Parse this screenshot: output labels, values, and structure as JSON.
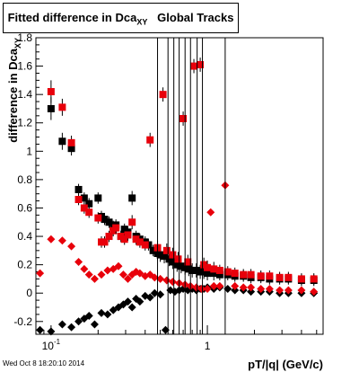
{
  "canvas_title": {
    "text": "Fitted difference in Dca",
    "subscript": "XY",
    "suffix": "Global Tracks"
  },
  "timestamp": "Wed Oct  8 18:20:10 2014",
  "colors": {
    "black_series": "#000000",
    "red_series": "#e8000b",
    "background": "#ffffff",
    "axis": "#000000"
  },
  "chart_data": {
    "type": "scatter",
    "title": "Fitted difference in Dca XY Global Tracks",
    "xlabel": "pT/|q| (GeV/c)",
    "ylabel": "difference in Dca",
    "ylabel_subscript": "XY",
    "x_scale": "log",
    "xlim": [
      0.08,
      5.5
    ],
    "ylim": [
      -0.29,
      1.8
    ],
    "x_ticks": [
      {
        "value": 0.1,
        "label": "10^{-1}"
      },
      {
        "value": 1,
        "label": "1"
      }
    ],
    "y_ticks": [
      -0.2,
      0,
      0.2,
      0.4,
      0.6,
      0.8,
      1,
      1.2,
      1.4,
      1.6,
      1.8
    ],
    "grid": false,
    "legend": "none",
    "series": [
      {
        "marker": "square",
        "color": "#000000",
        "points": [
          [
            0.1,
            1.3,
            0.08
          ],
          [
            0.118,
            1.07,
            0.06
          ],
          [
            0.135,
            1.02,
            0.05
          ],
          [
            0.15,
            0.73,
            0.04
          ],
          [
            0.163,
            0.67,
            0.04
          ],
          [
            0.175,
            0.63,
            0.04
          ],
          [
            0.2,
            0.67,
            0.04
          ],
          [
            0.21,
            0.54,
            0.04
          ],
          [
            0.22,
            0.52,
            0.04
          ],
          [
            0.235,
            0.5,
            0.04
          ],
          [
            0.25,
            0.47,
            0.04
          ],
          [
            0.26,
            0.48,
            0.04
          ],
          [
            0.28,
            0.4,
            0.04
          ],
          [
            0.295,
            0.45,
            0.04
          ],
          [
            0.31,
            0.43,
            0.04
          ],
          [
            0.33,
            0.67,
            0.05
          ],
          [
            0.35,
            0.4,
            0.04
          ],
          [
            0.37,
            0.38,
            0.04
          ],
          [
            0.4,
            0.36,
            0.04
          ],
          [
            0.42,
            0.34,
            0.04
          ],
          [
            0.45,
            0.3,
            0.04
          ],
          [
            0.48,
            0.28,
            0.05
          ],
          [
            0.5,
            0.27,
            0.05
          ],
          [
            0.53,
            0.26,
            0.05
          ],
          [
            0.57,
            0.24,
            0.05
          ],
          [
            0.6,
            0.22,
            0.05
          ],
          [
            0.64,
            0.2,
            0.05
          ],
          [
            0.68,
            0.19,
            0.05
          ],
          [
            0.72,
            0.18,
            0.05
          ],
          [
            0.76,
            0.17,
            0.05
          ],
          [
            0.8,
            0.16,
            0.05
          ],
          [
            0.85,
            0.16,
            0.05
          ],
          [
            0.9,
            0.15,
            0.05
          ],
          [
            0.95,
            0.15,
            0.05
          ],
          [
            1.0,
            0.14,
            0.05
          ],
          [
            1.1,
            0.14,
            0.05
          ],
          [
            1.2,
            0.13,
            0.04
          ],
          [
            1.35,
            0.13,
            0.04
          ],
          [
            1.5,
            0.12,
            0.04
          ],
          [
            1.7,
            0.12,
            0.04
          ],
          [
            1.9,
            0.11,
            0.04
          ],
          [
            2.2,
            0.11,
            0.04
          ],
          [
            2.5,
            0.1,
            0.04
          ],
          [
            2.9,
            0.1,
            0.04
          ],
          [
            3.3,
            0.1,
            0.04
          ],
          [
            4.0,
            0.09,
            0.04
          ],
          [
            4.8,
            0.09,
            0.04
          ]
        ]
      },
      {
        "marker": "square",
        "color": "#e8000b",
        "points": [
          [
            0.1,
            1.42,
            0.08
          ],
          [
            0.118,
            1.31,
            0.06
          ],
          [
            0.135,
            1.06,
            0.05
          ],
          [
            0.15,
            0.66,
            0.04
          ],
          [
            0.163,
            0.6,
            0.04
          ],
          [
            0.175,
            0.57,
            0.04
          ],
          [
            0.2,
            0.53,
            0.04
          ],
          [
            0.21,
            0.36,
            0.04
          ],
          [
            0.22,
            0.36,
            0.04
          ],
          [
            0.235,
            0.4,
            0.04
          ],
          [
            0.25,
            0.44,
            0.04
          ],
          [
            0.26,
            0.46,
            0.04
          ],
          [
            0.28,
            0.4,
            0.04
          ],
          [
            0.295,
            0.38,
            0.04
          ],
          [
            0.31,
            0.41,
            0.04
          ],
          [
            0.33,
            0.5,
            0.05
          ],
          [
            0.35,
            0.38,
            0.04
          ],
          [
            0.37,
            0.36,
            0.04
          ],
          [
            0.4,
            0.34,
            0.04
          ],
          [
            0.43,
            1.08,
            0.05
          ],
          [
            0.48,
            0.32,
            0.05
          ],
          [
            0.52,
            1.4,
            0.05
          ],
          [
            0.55,
            0.3,
            0.05
          ],
          [
            0.6,
            0.27,
            0.05
          ],
          [
            0.65,
            0.24,
            0.05
          ],
          [
            0.7,
            1.23,
            0.05
          ],
          [
            0.75,
            0.22,
            0.05
          ],
          [
            0.82,
            1.6,
            0.05
          ],
          [
            0.9,
            1.61,
            0.05
          ],
          [
            0.95,
            0.2,
            0.05
          ],
          [
            1.0,
            0.18,
            0.05
          ],
          [
            1.1,
            0.17,
            0.05
          ],
          [
            1.2,
            0.16,
            0.04
          ],
          [
            1.35,
            0.15,
            0.04
          ],
          [
            1.5,
            0.14,
            0.04
          ],
          [
            1.7,
            0.13,
            0.04
          ],
          [
            1.9,
            0.13,
            0.04
          ],
          [
            2.2,
            0.12,
            0.04
          ],
          [
            2.5,
            0.12,
            0.04
          ],
          [
            2.9,
            0.11,
            0.04
          ],
          [
            3.3,
            0.11,
            0.04
          ],
          [
            4.0,
            0.1,
            0.04
          ],
          [
            4.8,
            0.1,
            0.04
          ]
        ]
      },
      {
        "marker": "diamond",
        "color": "#000000",
        "points": [
          [
            0.085,
            -0.26
          ],
          [
            0.1,
            -0.27
          ],
          [
            0.118,
            -0.22
          ],
          [
            0.135,
            -0.24
          ],
          [
            0.15,
            -0.2
          ],
          [
            0.163,
            -0.18
          ],
          [
            0.175,
            -0.16
          ],
          [
            0.19,
            -0.22
          ],
          [
            0.21,
            -0.14
          ],
          [
            0.23,
            -0.15
          ],
          [
            0.25,
            -0.12
          ],
          [
            0.27,
            -0.1
          ],
          [
            0.29,
            -0.08
          ],
          [
            0.31,
            -0.06
          ],
          [
            0.33,
            -0.1
          ],
          [
            0.35,
            -0.04
          ],
          [
            0.37,
            -0.06
          ],
          [
            0.4,
            -0.02
          ],
          [
            0.43,
            -0.03
          ],
          [
            0.46,
            0.0
          ],
          [
            0.5,
            -0.01
          ],
          [
            0.54,
            -0.26
          ],
          [
            0.58,
            0.02
          ],
          [
            0.62,
            0.01
          ],
          [
            0.66,
            0.02
          ],
          [
            0.7,
            0.03
          ],
          [
            0.75,
            0.02
          ],
          [
            0.8,
            0.03
          ],
          [
            0.85,
            0.02
          ],
          [
            0.9,
            0.03
          ],
          [
            0.95,
            0.03
          ],
          [
            1.0,
            0.04
          ],
          [
            1.1,
            0.03
          ],
          [
            1.2,
            0.04
          ],
          [
            1.35,
            0.03
          ],
          [
            1.5,
            0.02
          ],
          [
            1.7,
            0.02
          ],
          [
            1.9,
            0.01
          ],
          [
            2.2,
            0.01
          ],
          [
            2.5,
            0.01
          ],
          [
            2.9,
            0.0
          ],
          [
            3.3,
            0.0
          ],
          [
            4.0,
            0.0
          ],
          [
            4.8,
            0.0
          ]
        ]
      },
      {
        "marker": "diamond",
        "color": "#e8000b",
        "points": [
          [
            0.085,
            0.14
          ],
          [
            0.1,
            0.38
          ],
          [
            0.118,
            0.37
          ],
          [
            0.135,
            0.33
          ],
          [
            0.15,
            0.22
          ],
          [
            0.163,
            0.17
          ],
          [
            0.175,
            0.13
          ],
          [
            0.19,
            0.1
          ],
          [
            0.21,
            0.13
          ],
          [
            0.23,
            0.16
          ],
          [
            0.25,
            0.17
          ],
          [
            0.27,
            0.19
          ],
          [
            0.29,
            0.13
          ],
          [
            0.31,
            0.1
          ],
          [
            0.33,
            0.13
          ],
          [
            0.35,
            0.15
          ],
          [
            0.37,
            0.14
          ],
          [
            0.4,
            0.12
          ],
          [
            0.43,
            0.13
          ],
          [
            0.46,
            0.11
          ],
          [
            0.5,
            0.1
          ],
          [
            0.55,
            0.09
          ],
          [
            0.6,
            0.08
          ],
          [
            0.66,
            0.07
          ],
          [
            0.72,
            0.06
          ],
          [
            0.78,
            0.05
          ],
          [
            0.85,
            0.04
          ],
          [
            0.92,
            0.03
          ],
          [
            1.0,
            0.03
          ],
          [
            1.05,
            0.57
          ],
          [
            1.1,
            0.05
          ],
          [
            1.2,
            0.05
          ],
          [
            1.3,
            0.76
          ],
          [
            1.5,
            0.05
          ],
          [
            1.7,
            0.04
          ],
          [
            1.9,
            0.04
          ],
          [
            2.2,
            0.03
          ],
          [
            2.5,
            0.03
          ],
          [
            2.9,
            0.02
          ],
          [
            3.3,
            0.02
          ],
          [
            4.0,
            0.02
          ],
          [
            4.8,
            0.01
          ]
        ]
      }
    ]
  }
}
